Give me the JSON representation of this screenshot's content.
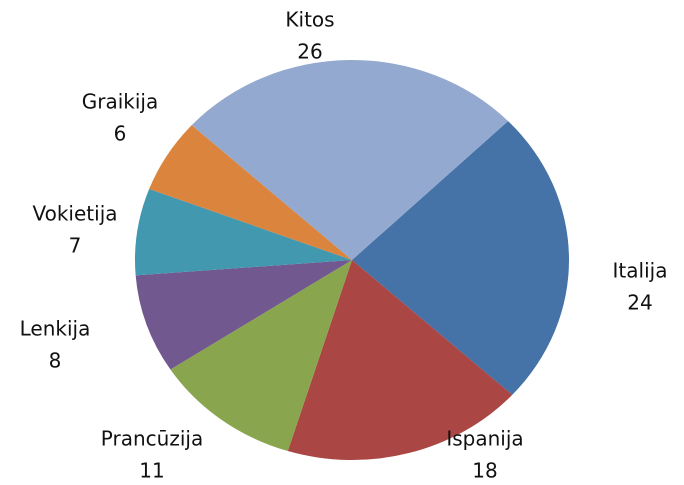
{
  "chart_data": {
    "type": "pie",
    "categories": [
      "Italija",
      "Ispanija",
      "Prancūzija",
      "Lenkija",
      "Vokietija",
      "Graikija",
      "Kitos"
    ],
    "values": [
      24,
      18,
      11,
      8,
      7,
      6,
      26
    ],
    "colors": [
      "#4572a7",
      "#aa4643",
      "#89a54e",
      "#71588f",
      "#4198af",
      "#db843d",
      "#93a9cf"
    ]
  }
}
